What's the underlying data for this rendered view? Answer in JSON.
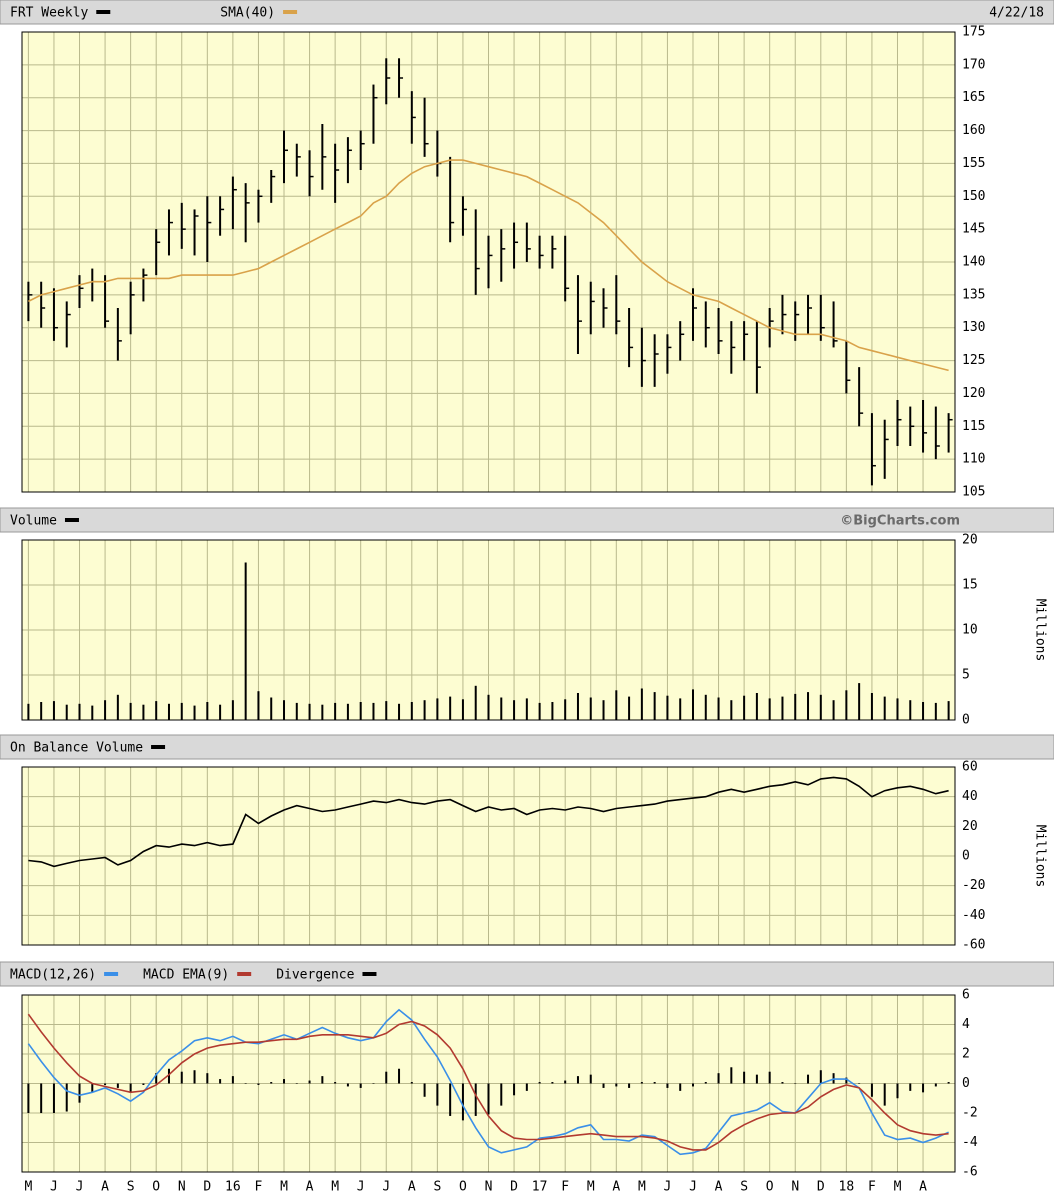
{
  "chart_data": [
    {
      "type": "ohlc",
      "date": "4/22/18",
      "series": [
        {
          "name": "FRT Weekly",
          "type": "ohlc",
          "color": "#000000",
          "high": [
            137,
            137,
            136,
            134,
            138,
            139,
            138,
            133,
            137,
            139,
            145,
            148,
            149,
            148,
            150,
            150,
            153,
            152,
            151,
            154,
            160,
            158,
            157,
            161,
            158,
            159,
            160,
            167,
            171,
            171,
            166,
            165,
            160,
            156,
            150,
            148,
            144,
            145,
            146,
            146,
            144,
            144,
            144,
            138,
            137,
            136,
            138,
            133,
            130,
            129,
            129,
            131,
            136,
            134,
            133,
            131,
            131,
            131,
            133,
            135,
            134,
            135,
            135,
            134,
            128,
            124,
            117,
            116,
            119,
            118,
            119,
            118,
            117
          ],
          "low": [
            131,
            130,
            128,
            127,
            133,
            134,
            130,
            125,
            129,
            134,
            138,
            141,
            142,
            141,
            140,
            144,
            145,
            143,
            146,
            149,
            152,
            153,
            150,
            151,
            149,
            152,
            154,
            158,
            164,
            165,
            158,
            156,
            153,
            143,
            144,
            135,
            136,
            137,
            139,
            140,
            139,
            139,
            134,
            126,
            129,
            130,
            129,
            124,
            121,
            121,
            123,
            125,
            128,
            127,
            126,
            123,
            125,
            120,
            127,
            129,
            128,
            129,
            128,
            127,
            120,
            115,
            106,
            107,
            112,
            112,
            111,
            110,
            111
          ],
          "close": [
            135,
            133,
            130,
            132,
            136,
            137,
            131,
            128,
            135,
            138,
            143,
            146,
            145,
            147,
            146,
            148,
            151,
            149,
            150,
            153,
            157,
            156,
            153,
            156,
            154,
            157,
            158,
            165,
            168,
            168,
            162,
            158,
            155,
            146,
            148,
            139,
            141,
            142,
            143,
            142,
            141,
            142,
            136,
            131,
            134,
            133,
            131,
            127,
            125,
            126,
            127,
            129,
            133,
            130,
            128,
            127,
            129,
            124,
            131,
            132,
            132,
            133,
            130,
            128,
            122,
            117,
            109,
            113,
            116,
            115,
            114,
            112,
            116
          ]
        },
        {
          "name": "SMA(40)",
          "type": "line",
          "color": "#d9a24a",
          "values": [
            134,
            135,
            135.5,
            136,
            136.5,
            137,
            137,
            137.5,
            137.5,
            137.5,
            137.5,
            137.5,
            138,
            138,
            138,
            138,
            138,
            138.5,
            139,
            140,
            141,
            142,
            143,
            144,
            145,
            146,
            147,
            149,
            150,
            152,
            153.5,
            154.5,
            155,
            155.5,
            155.5,
            155,
            154.5,
            154,
            153.5,
            153,
            152,
            151,
            150,
            149,
            147.5,
            146,
            144,
            142,
            140,
            138.5,
            137,
            136,
            135,
            134.5,
            134,
            133,
            132,
            131,
            130,
            129.5,
            129,
            129,
            129,
            128.5,
            128,
            127,
            126.5,
            126,
            125.5,
            125,
            124.5,
            124,
            123.5
          ]
        }
      ],
      "ylim": [
        105,
        175
      ],
      "yticks": [
        105,
        110,
        115,
        120,
        125,
        130,
        135,
        140,
        145,
        150,
        155,
        160,
        165,
        170,
        175
      ],
      "grid": true
    },
    {
      "type": "bar",
      "source": "©BigCharts.com",
      "y_label": "Millions",
      "series": [
        {
          "name": "Volume",
          "type": "bar",
          "color": "#000000",
          "values": [
            1.8,
            2,
            2.1,
            1.7,
            1.8,
            1.6,
            2.2,
            2.8,
            1.9,
            1.7,
            2.1,
            1.8,
            1.9,
            1.6,
            2,
            1.7,
            2.2,
            17.5,
            3.2,
            2.5,
            2.2,
            1.9,
            1.8,
            1.7,
            1.9,
            1.8,
            2,
            1.9,
            2.1,
            1.8,
            2,
            2.2,
            2.4,
            2.6,
            2.3,
            3.8,
            2.8,
            2.5,
            2.2,
            2.4,
            1.9,
            2,
            2.3,
            3,
            2.5,
            2.2,
            3.3,
            2.6,
            3.5,
            3.1,
            2.7,
            2.4,
            3.4,
            2.8,
            2.5,
            2.2,
            2.7,
            3,
            2.4,
            2.6,
            2.9,
            3.1,
            2.8,
            2.2,
            3.3,
            4.1,
            3,
            2.6,
            2.4,
            2.2,
            2,
            1.9,
            2.1
          ]
        }
      ],
      "ylim": [
        0,
        20
      ],
      "yticks": [
        0,
        5,
        10,
        15,
        20
      ],
      "grid": true
    },
    {
      "type": "line",
      "y_label": "Millions",
      "series": [
        {
          "name": "On Balance Volume",
          "type": "line",
          "color": "#000000",
          "values": [
            -3,
            -4,
            -7,
            -5,
            -3,
            -2,
            -1,
            -6,
            -3,
            3,
            7,
            6,
            8,
            7,
            9,
            7,
            8,
            28,
            22,
            27,
            31,
            34,
            32,
            30,
            31,
            33,
            35,
            37,
            36,
            38,
            36,
            35,
            37,
            38,
            34,
            30,
            33,
            31,
            32,
            28,
            31,
            32,
            31,
            33,
            32,
            30,
            32,
            33,
            34,
            35,
            37,
            38,
            39,
            40,
            43,
            45,
            43,
            45,
            47,
            48,
            50,
            48,
            52,
            53,
            52,
            47,
            40,
            44,
            46,
            47,
            45,
            42,
            44
          ]
        }
      ],
      "ylim": [
        -60,
        60
      ],
      "yticks": [
        -60,
        -40,
        -20,
        0,
        20,
        40,
        60
      ],
      "grid": true
    },
    {
      "type": "macd",
      "categories": [
        "M",
        null,
        "J",
        null,
        "J",
        null,
        "A",
        null,
        "S",
        null,
        "O",
        null,
        "N",
        null,
        "D",
        null,
        "16",
        null,
        "F",
        null,
        "M",
        null,
        "A",
        null,
        "M",
        null,
        "J",
        null,
        "J",
        null,
        "A",
        null,
        "S",
        null,
        "O",
        null,
        "N",
        null,
        "D",
        null,
        "17",
        null,
        "F",
        null,
        "M",
        null,
        "A",
        null,
        "M",
        null,
        "J",
        null,
        "J",
        null,
        "A",
        null,
        "S",
        null,
        "O",
        null,
        "N",
        null,
        "D",
        null,
        "18",
        null,
        "F",
        null,
        "M",
        null,
        "A",
        null,
        null
      ],
      "series": [
        {
          "name": "MACD(12,26)",
          "type": "line",
          "color": "#3a8fe8",
          "values": [
            2.7,
            1.5,
            0.4,
            -0.5,
            -0.8,
            -0.6,
            -0.3,
            -0.7,
            -1.2,
            -0.6,
            0.6,
            1.6,
            2.2,
            2.9,
            3.1,
            2.9,
            3.2,
            2.8,
            2.7,
            3,
            3.3,
            3,
            3.4,
            3.8,
            3.4,
            3.1,
            2.9,
            3.1,
            4.2,
            5,
            4.3,
            3,
            1.8,
            0.2,
            -1.5,
            -3,
            -4.3,
            -4.7,
            -4.5,
            -4.3,
            -3.7,
            -3.6,
            -3.4,
            -3,
            -2.8,
            -3.8,
            -3.8,
            -3.9,
            -3.5,
            -3.6,
            -4.2,
            -4.8,
            -4.7,
            -4.4,
            -3.3,
            -2.2,
            -2,
            -1.8,
            -1.3,
            -1.9,
            -2,
            -1,
            0,
            0.3,
            0.3,
            -0.3,
            -2,
            -3.5,
            -3.8,
            -3.7,
            -4,
            -3.7,
            -3.3
          ]
        },
        {
          "name": "MACD EMA(9)",
          "type": "line",
          "color": "#b23a30",
          "values": [
            4.7,
            3.5,
            2.4,
            1.4,
            0.5,
            0,
            -0.2,
            -0.4,
            -0.6,
            -0.5,
            -0.1,
            0.6,
            1.4,
            2,
            2.4,
            2.6,
            2.7,
            2.8,
            2.8,
            2.9,
            3,
            3,
            3.2,
            3.3,
            3.3,
            3.3,
            3.2,
            3.1,
            3.4,
            4,
            4.2,
            3.9,
            3.3,
            2.4,
            1,
            -0.8,
            -2.2,
            -3.2,
            -3.7,
            -3.8,
            -3.8,
            -3.7,
            -3.6,
            -3.5,
            -3.4,
            -3.5,
            -3.6,
            -3.6,
            -3.6,
            -3.7,
            -3.9,
            -4.3,
            -4.5,
            -4.5,
            -4,
            -3.3,
            -2.8,
            -2.4,
            -2.1,
            -2,
            -2,
            -1.6,
            -0.9,
            -0.4,
            -0.1,
            -0.3,
            -1.1,
            -2,
            -2.8,
            -3.2,
            -3.4,
            -3.5,
            -3.4
          ]
        },
        {
          "name": "Divergence",
          "type": "bar",
          "color": "#000000",
          "values": [
            -2,
            -2,
            -2,
            -1.9,
            -1.3,
            -0.6,
            -0.1,
            -0.3,
            -0.6,
            -0.1,
            0.7,
            1,
            0.8,
            0.9,
            0.7,
            0.3,
            0.5,
            0,
            -0.1,
            0.1,
            0.3,
            0,
            0.2,
            0.5,
            0.1,
            -0.2,
            -0.3,
            0,
            0.8,
            1,
            0.1,
            -0.9,
            -1.5,
            -2.2,
            -2.5,
            -2.2,
            -2.1,
            -1.5,
            -0.8,
            -0.5,
            0.1,
            0.1,
            0.2,
            0.5,
            0.6,
            -0.3,
            -0.2,
            -0.3,
            0.1,
            0.1,
            -0.3,
            -0.5,
            -0.2,
            0.1,
            0.7,
            1.1,
            0.8,
            0.6,
            0.8,
            0.1,
            0,
            0.6,
            0.9,
            0.7,
            0.4,
            0,
            -0.9,
            -1.5,
            -1,
            -0.5,
            -0.6,
            -0.2,
            0.1
          ]
        }
      ],
      "ylim": [
        -6,
        6
      ],
      "yticks": [
        -6,
        -4,
        -2,
        0,
        2,
        4,
        6
      ],
      "grid": true
    }
  ]
}
